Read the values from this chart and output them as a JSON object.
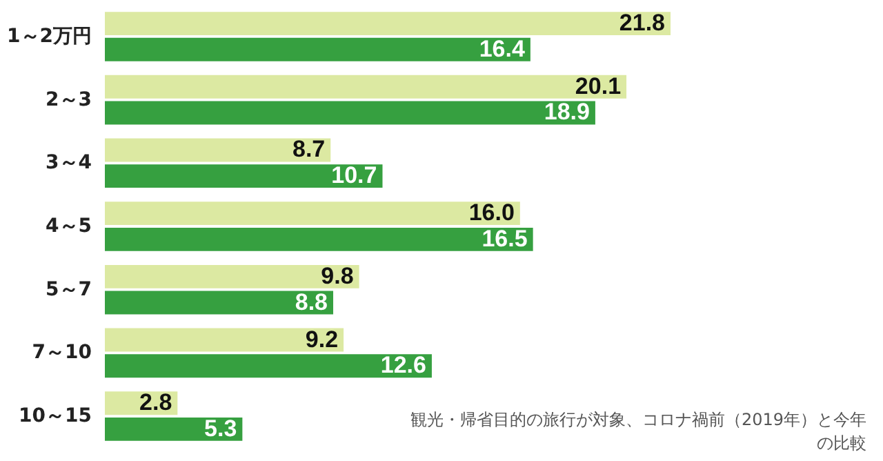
{
  "chart_data": {
    "type": "bar",
    "orientation": "horizontal",
    "categories": [
      "1～2万円",
      "2～3",
      "3～4",
      "4～5",
      "5～7",
      "7～10",
      "10～15"
    ],
    "series": [
      {
        "color": "#dce9a2",
        "values": [
          21.8,
          20.1,
          8.7,
          16.0,
          9.8,
          9.2,
          2.8
        ],
        "value_labels": [
          "21.8",
          "20.1",
          "8.7",
          "16.0",
          "9.8",
          "9.2",
          "2.8"
        ]
      },
      {
        "color": "#36a040",
        "values": [
          16.4,
          18.9,
          10.7,
          16.5,
          8.8,
          12.6,
          5.3
        ],
        "value_labels": [
          "16.4",
          "18.9",
          "10.7",
          "16.5",
          "8.8",
          "12.6",
          "5.3"
        ]
      }
    ],
    "data_labels": true,
    "annotations": [
      "観光・帰省目的の旅行が対象、コロナ禍前（2019年）と今年の比較"
    ]
  }
}
